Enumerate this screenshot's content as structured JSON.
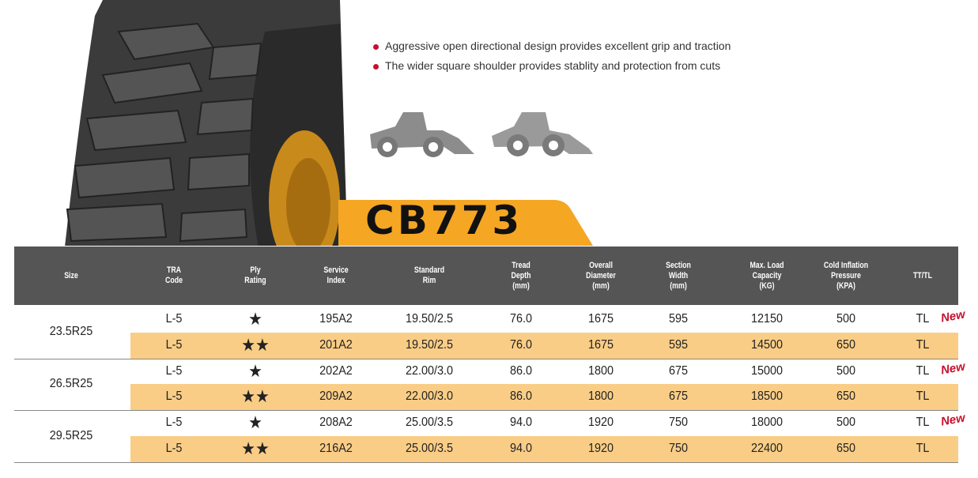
{
  "bullets": [
    "Aggressive open directional design provides excellent grip and traction",
    "The wider square shoulder provides stablity and protection from cuts"
  ],
  "model": "CB773",
  "table": {
    "headers": [
      [
        "Size"
      ],
      [
        "TRA",
        "Code"
      ],
      [
        "Ply",
        "Rating"
      ],
      [
        "Service",
        "Index"
      ],
      [
        "Standard",
        "Rim"
      ],
      [
        "Tread",
        "Depth",
        "(mm)"
      ],
      [
        "Overall",
        "Diameter",
        "(mm)"
      ],
      [
        "Section",
        "Width",
        "(mm)"
      ],
      [
        "Max. Load",
        "Capacity",
        "(KG)"
      ],
      [
        "Cold Inflation",
        "Pressure",
        "(KPA)"
      ],
      [
        "TT/TL"
      ]
    ],
    "groups": [
      {
        "size": "23.5R25",
        "badge": "New",
        "rows": [
          [
            "L-5",
            "★",
            "195A2",
            "19.50/2.5",
            "76.0",
            "1675",
            "595",
            "12150",
            "500",
            "TL"
          ],
          [
            "L-5",
            "★★",
            "201A2",
            "19.50/2.5",
            "76.0",
            "1675",
            "595",
            "14500",
            "650",
            "TL"
          ]
        ]
      },
      {
        "size": "26.5R25",
        "badge": "New",
        "rows": [
          [
            "L-5",
            "★",
            "202A2",
            "22.00/3.0",
            "86.0",
            "1800",
            "675",
            "15000",
            "500",
            "TL"
          ],
          [
            "L-5",
            "★★",
            "209A2",
            "22.00/3.0",
            "86.0",
            "1800",
            "675",
            "18500",
            "650",
            "TL"
          ]
        ]
      },
      {
        "size": "29.5R25",
        "badge": "New",
        "rows": [
          [
            "L-5",
            "★",
            "208A2",
            "25.00/3.5",
            "94.0",
            "1920",
            "750",
            "18000",
            "500",
            "TL"
          ],
          [
            "L-5",
            "★★",
            "216A2",
            "25.00/3.5",
            "94.0",
            "1920",
            "750",
            "22400",
            "650",
            "TL"
          ]
        ]
      }
    ]
  }
}
